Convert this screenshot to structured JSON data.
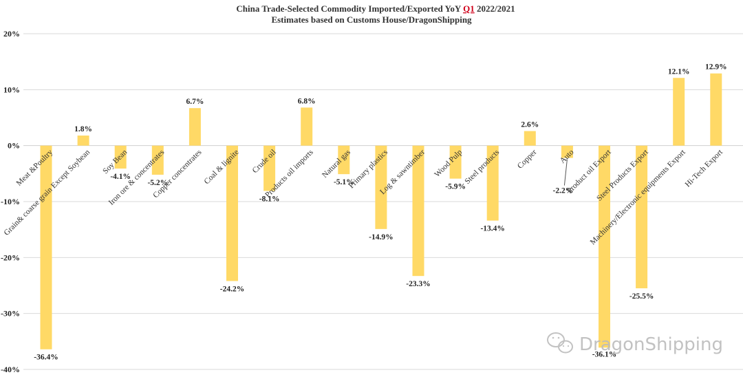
{
  "chart_data": {
    "type": "bar",
    "title_parts": [
      "China Trade-Selected Commodity Imported/Exported YoY ",
      "Q1",
      " 2022/2021"
    ],
    "subtitle": "Estimates based on Customs House/DragonShipping",
    "categories": [
      "Meat &Poultry",
      "Grain& coarse grain Except Soybean",
      "Soy Bean",
      "Iron ore & concentrates",
      "Copper concentrates",
      "Coal & lignite",
      "Crude oil",
      "Products oil imports",
      "Natural gas",
      "Primary plastics",
      "Log & sawntimber",
      "Wood Pulp",
      "Steel products",
      "Copper",
      "Auto",
      "Product oil Export",
      "Steel Products Export",
      "Machinery/Electronic equipments Export",
      "Hi-Tech Export"
    ],
    "values": [
      -36.4,
      1.8,
      -4.1,
      -5.2,
      6.7,
      -24.2,
      -8.1,
      6.8,
      -5.1,
      -14.9,
      -23.3,
      -5.9,
      -13.4,
      2.6,
      -2.2,
      -36.1,
      -25.5,
      12.1,
      12.9
    ],
    "value_labels": [
      "-36.4%",
      "1.8%",
      "-4.1%",
      "-5.2%",
      "6.7%",
      "-24.2%",
      "-8.1%",
      "6.8%",
      "-5.1%",
      "-14.9%",
      "-23.3%",
      "-5.9%",
      "-13.4%",
      "2.6%",
      "-2.2%",
      "-36.1%",
      "-25.5%",
      "12.1%",
      "12.9%"
    ],
    "ylim": [
      -40,
      20
    ],
    "yticks": [
      20,
      10,
      0,
      -10,
      -20,
      -30,
      -40
    ],
    "ytick_labels": [
      "20%",
      "10%",
      "0%",
      "-10%",
      "-20%",
      "-30%",
      "-40%"
    ],
    "grid": true,
    "bar_color": "#ffd966",
    "title_accent_color": "#d0021b"
  },
  "watermark": {
    "text": "DragonShipping",
    "icon": "wechat-icon"
  }
}
